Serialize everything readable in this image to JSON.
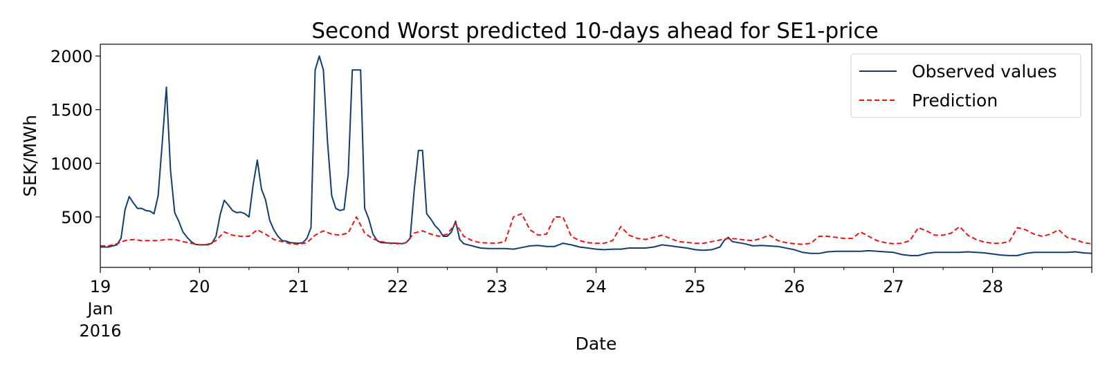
{
  "chart_data": {
    "type": "line",
    "title": "Second Worst predicted 10-days ahead for SE1-price",
    "xlabel": "Date",
    "ylabel": "SEK/MWh",
    "xlim": [
      0,
      240
    ],
    "ylim": [
      30,
      2110
    ],
    "y_ticks": [
      500,
      1000,
      1500,
      2000
    ],
    "x_ticks": [
      {
        "x": 0,
        "lines": [
          "19",
          "Jan",
          "2016"
        ]
      },
      {
        "x": 24,
        "lines": [
          "20"
        ]
      },
      {
        "x": 48,
        "lines": [
          "21"
        ]
      },
      {
        "x": 72,
        "lines": [
          "22"
        ]
      },
      {
        "x": 96,
        "lines": [
          "23"
        ]
      },
      {
        "x": 120,
        "lines": [
          "24"
        ]
      },
      {
        "x": 144,
        "lines": [
          "25"
        ]
      },
      {
        "x": 168,
        "lines": [
          "26"
        ]
      },
      {
        "x": 192,
        "lines": [
          "27"
        ]
      },
      {
        "x": 216,
        "lines": [
          "28"
        ]
      }
    ],
    "legend_position": "top-right",
    "grid": false,
    "series": [
      {
        "name": "Observed values",
        "color": "#0e3d6e",
        "dash": "solid",
        "points": [
          [
            0,
            220
          ],
          [
            2,
            220
          ],
          [
            4,
            240
          ],
          [
            5,
            300
          ],
          [
            6,
            570
          ],
          [
            7,
            690
          ],
          [
            8,
            630
          ],
          [
            9,
            580
          ],
          [
            10,
            580
          ],
          [
            11,
            560
          ],
          [
            12,
            555
          ],
          [
            13,
            530
          ],
          [
            14,
            700
          ],
          [
            15,
            1200
          ],
          [
            16,
            1710
          ],
          [
            17,
            930
          ],
          [
            18,
            540
          ],
          [
            19,
            460
          ],
          [
            20,
            360
          ],
          [
            21,
            310
          ],
          [
            22,
            270
          ],
          [
            23,
            245
          ],
          [
            24,
            240
          ],
          [
            26,
            240
          ],
          [
            27,
            255
          ],
          [
            28,
            320
          ],
          [
            29,
            520
          ],
          [
            30,
            655
          ],
          [
            31,
            610
          ],
          [
            32,
            560
          ],
          [
            33,
            540
          ],
          [
            34,
            545
          ],
          [
            35,
            530
          ],
          [
            36,
            500
          ],
          [
            37,
            800
          ],
          [
            38,
            1030
          ],
          [
            39,
            760
          ],
          [
            40,
            660
          ],
          [
            41,
            470
          ],
          [
            42,
            380
          ],
          [
            43,
            320
          ],
          [
            44,
            280
          ],
          [
            45,
            275
          ],
          [
            46,
            260
          ],
          [
            48,
            255
          ],
          [
            49,
            260
          ],
          [
            50,
            300
          ],
          [
            51,
            400
          ],
          [
            52,
            1870
          ],
          [
            53,
            2000
          ],
          [
            54,
            1870
          ],
          [
            55,
            1200
          ],
          [
            56,
            700
          ],
          [
            57,
            580
          ],
          [
            58,
            560
          ],
          [
            59,
            570
          ],
          [
            60,
            900
          ],
          [
            61,
            1870
          ],
          [
            63,
            1870
          ],
          [
            64,
            580
          ],
          [
            65,
            480
          ],
          [
            66,
            340
          ],
          [
            67,
            280
          ],
          [
            68,
            260
          ],
          [
            72,
            255
          ],
          [
            73,
            250
          ],
          [
            74,
            260
          ],
          [
            75,
            300
          ],
          [
            76,
            760
          ],
          [
            77,
            1120
          ],
          [
            78,
            1120
          ],
          [
            79,
            530
          ],
          [
            80,
            480
          ],
          [
            81,
            420
          ],
          [
            82,
            380
          ],
          [
            83,
            320
          ],
          [
            84,
            320
          ],
          [
            85,
            360
          ],
          [
            86,
            460
          ],
          [
            87,
            290
          ],
          [
            88,
            250
          ],
          [
            90,
            230
          ],
          [
            92,
            210
          ],
          [
            94,
            205
          ],
          [
            98,
            205
          ],
          [
            100,
            200
          ],
          [
            102,
            215
          ],
          [
            104,
            230
          ],
          [
            106,
            235
          ],
          [
            108,
            225
          ],
          [
            110,
            225
          ],
          [
            112,
            255
          ],
          [
            114,
            240
          ],
          [
            116,
            220
          ],
          [
            118,
            210
          ],
          [
            120,
            200
          ],
          [
            122,
            195
          ],
          [
            124,
            200
          ],
          [
            126,
            200
          ],
          [
            128,
            210
          ],
          [
            132,
            210
          ],
          [
            134,
            220
          ],
          [
            136,
            240
          ],
          [
            138,
            230
          ],
          [
            140,
            220
          ],
          [
            142,
            210
          ],
          [
            144,
            195
          ],
          [
            146,
            190
          ],
          [
            148,
            195
          ],
          [
            150,
            220
          ],
          [
            151,
            280
          ],
          [
            152,
            310
          ],
          [
            153,
            270
          ],
          [
            156,
            250
          ],
          [
            158,
            230
          ],
          [
            160,
            235
          ],
          [
            164,
            225
          ],
          [
            168,
            195
          ],
          [
            170,
            170
          ],
          [
            172,
            160
          ],
          [
            174,
            160
          ],
          [
            176,
            175
          ],
          [
            178,
            180
          ],
          [
            180,
            180
          ],
          [
            184,
            180
          ],
          [
            186,
            185
          ],
          [
            190,
            175
          ],
          [
            192,
            170
          ],
          [
            194,
            150
          ],
          [
            196,
            140
          ],
          [
            198,
            140
          ],
          [
            200,
            160
          ],
          [
            202,
            170
          ],
          [
            208,
            170
          ],
          [
            210,
            175
          ],
          [
            214,
            165
          ],
          [
            216,
            155
          ],
          [
            218,
            145
          ],
          [
            220,
            140
          ],
          [
            222,
            140
          ],
          [
            224,
            160
          ],
          [
            226,
            170
          ],
          [
            230,
            170
          ],
          [
            234,
            170
          ],
          [
            236,
            175
          ],
          [
            238,
            165
          ],
          [
            240,
            160
          ]
        ]
      },
      {
        "name": "Prediction",
        "color": "#ee1111",
        "dash": "dashed",
        "points": [
          [
            0,
            230
          ],
          [
            2,
            230
          ],
          [
            4,
            250
          ],
          [
            6,
            280
          ],
          [
            8,
            290
          ],
          [
            10,
            280
          ],
          [
            12,
            280
          ],
          [
            14,
            280
          ],
          [
            16,
            290
          ],
          [
            18,
            290
          ],
          [
            20,
            270
          ],
          [
            22,
            255
          ],
          [
            24,
            240
          ],
          [
            26,
            245
          ],
          [
            28,
            280
          ],
          [
            30,
            360
          ],
          [
            32,
            330
          ],
          [
            34,
            320
          ],
          [
            36,
            320
          ],
          [
            38,
            380
          ],
          [
            40,
            340
          ],
          [
            42,
            290
          ],
          [
            44,
            270
          ],
          [
            46,
            250
          ],
          [
            48,
            245
          ],
          [
            50,
            260
          ],
          [
            52,
            330
          ],
          [
            54,
            370
          ],
          [
            56,
            340
          ],
          [
            58,
            330
          ],
          [
            60,
            350
          ],
          [
            62,
            500
          ],
          [
            64,
            350
          ],
          [
            66,
            295
          ],
          [
            68,
            270
          ],
          [
            70,
            255
          ],
          [
            72,
            250
          ],
          [
            74,
            260
          ],
          [
            76,
            350
          ],
          [
            78,
            370
          ],
          [
            80,
            340
          ],
          [
            82,
            320
          ],
          [
            84,
            340
          ],
          [
            86,
            440
          ],
          [
            88,
            320
          ],
          [
            90,
            280
          ],
          [
            92,
            260
          ],
          [
            96,
            255
          ],
          [
            98,
            270
          ],
          [
            100,
            500
          ],
          [
            102,
            530
          ],
          [
            104,
            380
          ],
          [
            106,
            330
          ],
          [
            108,
            340
          ],
          [
            110,
            500
          ],
          [
            112,
            500
          ],
          [
            114,
            320
          ],
          [
            116,
            280
          ],
          [
            118,
            260
          ],
          [
            120,
            255
          ],
          [
            122,
            255
          ],
          [
            124,
            280
          ],
          [
            126,
            410
          ],
          [
            128,
            330
          ],
          [
            130,
            300
          ],
          [
            132,
            290
          ],
          [
            134,
            310
          ],
          [
            136,
            330
          ],
          [
            138,
            300
          ],
          [
            140,
            270
          ],
          [
            144,
            255
          ],
          [
            146,
            255
          ],
          [
            148,
            270
          ],
          [
            150,
            285
          ],
          [
            152,
            300
          ],
          [
            154,
            295
          ],
          [
            156,
            285
          ],
          [
            158,
            280
          ],
          [
            160,
            300
          ],
          [
            162,
            330
          ],
          [
            164,
            280
          ],
          [
            166,
            260
          ],
          [
            168,
            250
          ],
          [
            170,
            245
          ],
          [
            172,
            255
          ],
          [
            174,
            320
          ],
          [
            176,
            320
          ],
          [
            178,
            310
          ],
          [
            180,
            300
          ],
          [
            182,
            300
          ],
          [
            184,
            360
          ],
          [
            186,
            320
          ],
          [
            188,
            280
          ],
          [
            190,
            260
          ],
          [
            192,
            250
          ],
          [
            194,
            255
          ],
          [
            196,
            280
          ],
          [
            198,
            400
          ],
          [
            200,
            370
          ],
          [
            202,
            330
          ],
          [
            204,
            330
          ],
          [
            206,
            350
          ],
          [
            208,
            410
          ],
          [
            210,
            330
          ],
          [
            212,
            290
          ],
          [
            214,
            265
          ],
          [
            216,
            255
          ],
          [
            218,
            255
          ],
          [
            220,
            270
          ],
          [
            222,
            400
          ],
          [
            224,
            380
          ],
          [
            226,
            340
          ],
          [
            228,
            320
          ],
          [
            230,
            340
          ],
          [
            232,
            380
          ],
          [
            234,
            310
          ],
          [
            236,
            290
          ],
          [
            238,
            260
          ],
          [
            240,
            250
          ]
        ]
      }
    ]
  }
}
